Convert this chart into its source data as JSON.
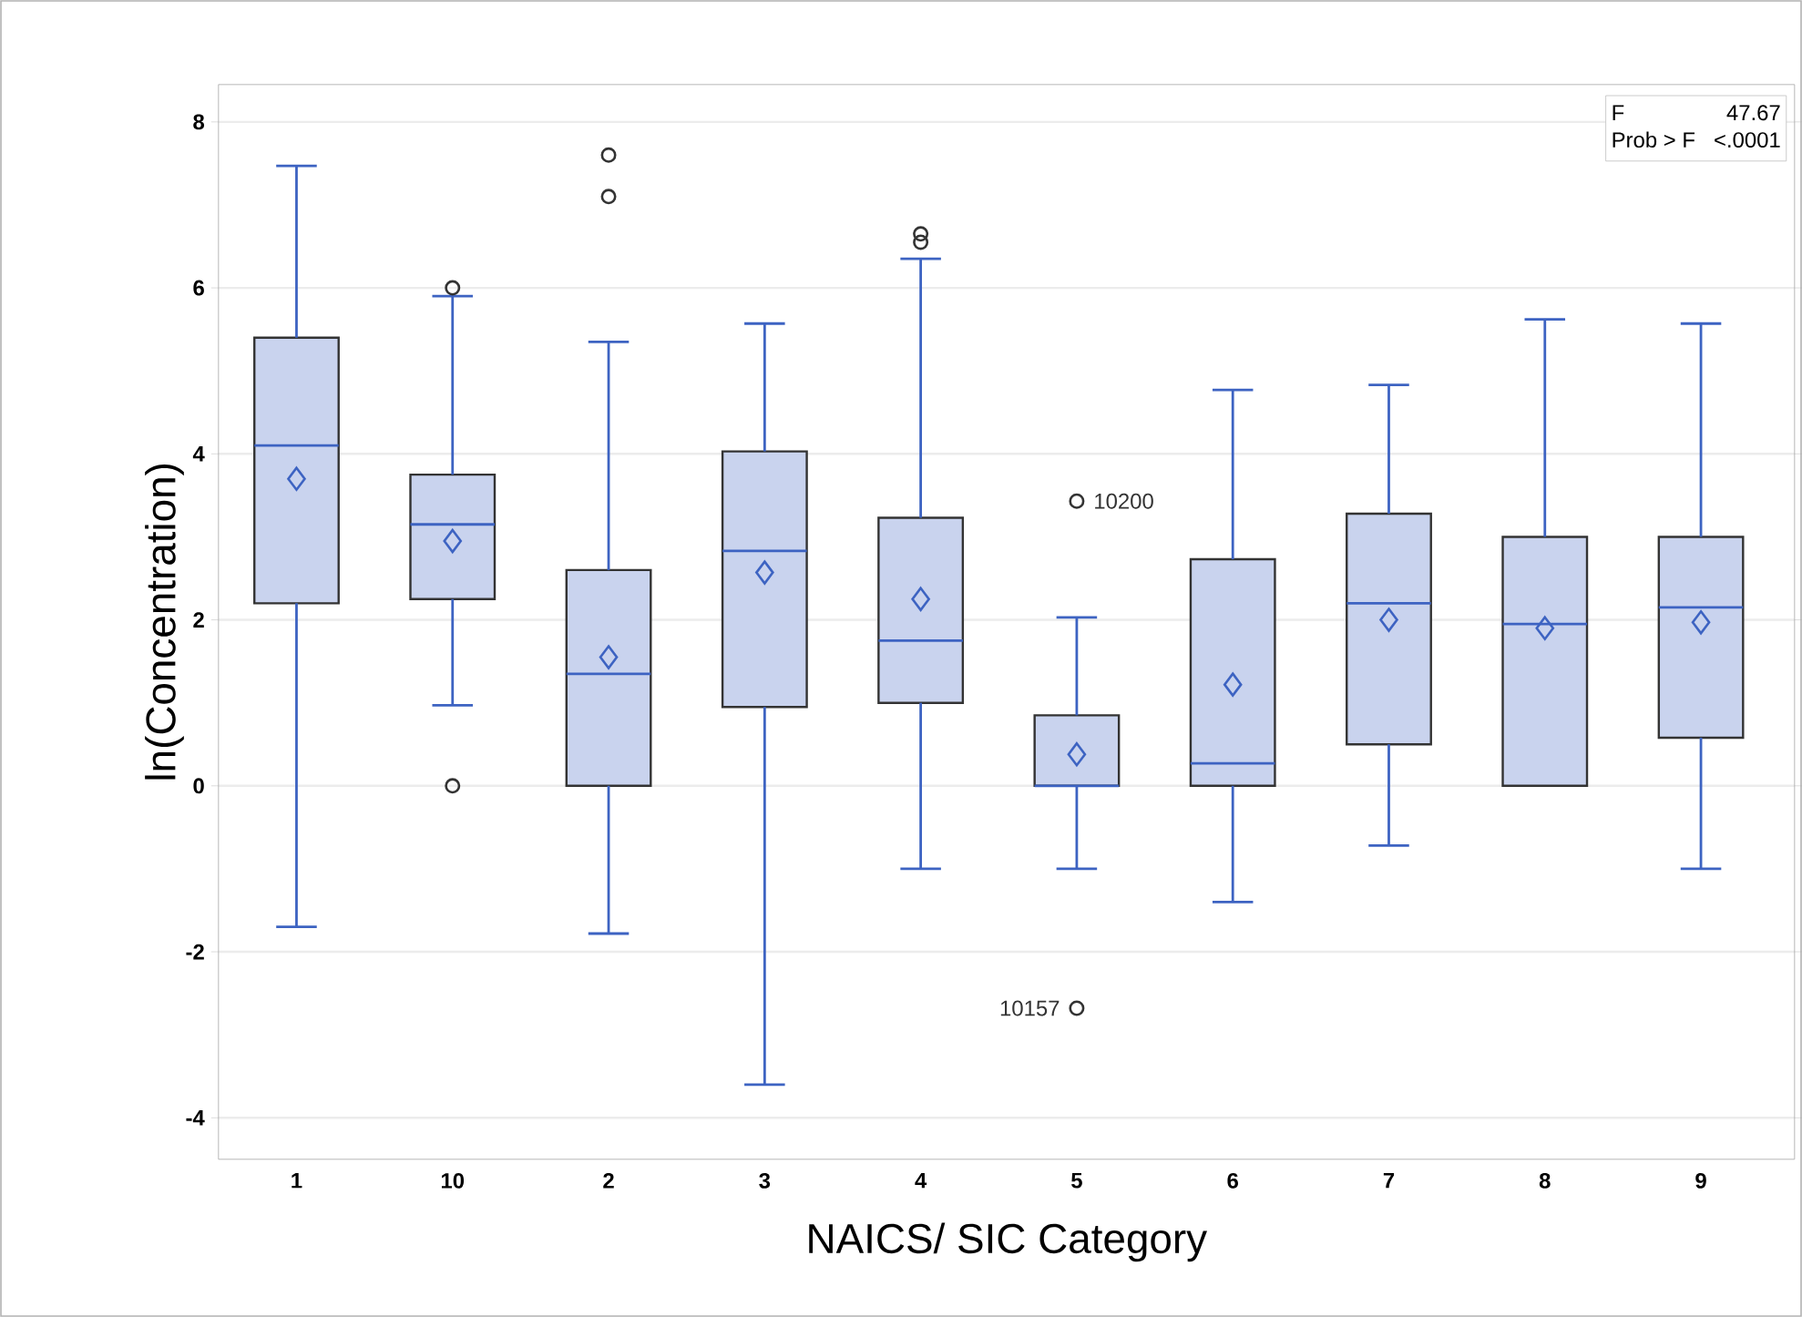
{
  "chart_data": {
    "type": "box",
    "xlabel": "NAICS/ SIC Category",
    "ylabel": "ln(Concentration)",
    "categories": [
      "1",
      "10",
      "2",
      "3",
      "4",
      "5",
      "6",
      "7",
      "8",
      "9"
    ],
    "color": "#c9d3ee",
    "boxes": [
      {
        "low": -1.7,
        "q1": 2.2,
        "median": 4.1,
        "q3": 5.4,
        "high": 7.47,
        "mean": 3.7
      },
      {
        "low": 0.97,
        "q1": 2.25,
        "median": 3.15,
        "q3": 3.75,
        "high": 5.9,
        "mean": 2.95,
        "outliers": [
          6.0,
          0.0
        ]
      },
      {
        "low": -1.78,
        "q1": 0.0,
        "median": 1.35,
        "q3": 2.6,
        "high": 5.35,
        "mean": 1.55,
        "outliers": [
          7.6,
          7.1
        ]
      },
      {
        "low": -3.6,
        "q1": 0.95,
        "median": 2.83,
        "q3": 4.03,
        "high": 5.57,
        "mean": 2.57
      },
      {
        "low": -1.0,
        "q1": 1.0,
        "median": 1.75,
        "q3": 3.23,
        "high": 6.35,
        "mean": 2.25,
        "outliers": [
          6.65,
          6.55
        ]
      },
      {
        "low": -1.0,
        "q1": 0.0,
        "median": 0.0,
        "q3": 0.85,
        "high": 2.03,
        "mean": 0.38,
        "outliers": [
          3.43,
          -2.68
        ]
      },
      {
        "low": -1.4,
        "q1": 0.0,
        "median": 0.27,
        "q3": 2.73,
        "high": 4.77,
        "mean": 1.22
      },
      {
        "low": -0.72,
        "q1": 0.5,
        "median": 2.2,
        "q3": 3.28,
        "high": 4.83,
        "mean": 2.0
      },
      {
        "low": 0.0,
        "q1": 0.0,
        "median": 1.95,
        "q3": 3.0,
        "high": 5.62,
        "mean": 1.9
      },
      {
        "low": -1.0,
        "q1": 0.58,
        "median": 2.15,
        "q3": 3.0,
        "high": 5.57,
        "mean": 1.97
      }
    ],
    "ylim": [
      -4.5,
      8.45
    ],
    "yticks": [
      -4,
      -2,
      0,
      2,
      4,
      6,
      8
    ],
    "grid": "y",
    "annotations": [
      "10200",
      "10157",
      "F",
      "47.67",
      "Prob > F",
      "<.0001"
    ]
  }
}
